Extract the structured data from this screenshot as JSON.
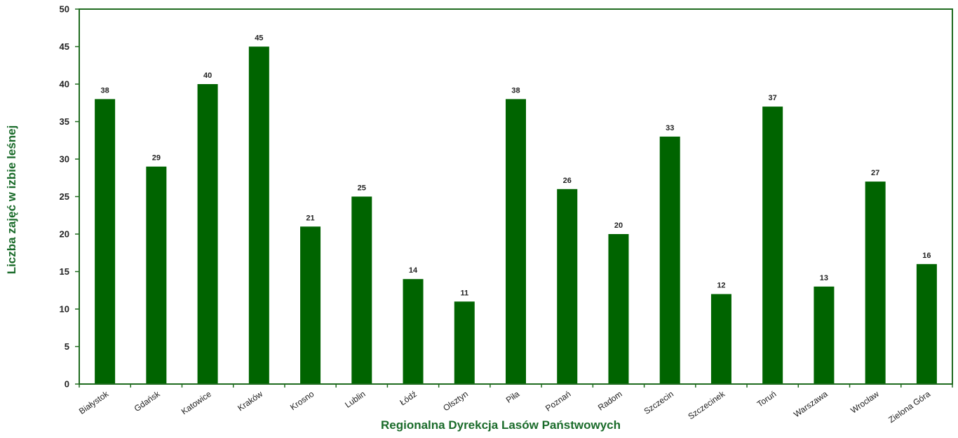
{
  "chart_data": {
    "type": "bar",
    "title": "",
    "xlabel": "Regionalna Dyrekcja Lasów Państwowych",
    "ylabel": "Liczba zajęć w izbie leśnej",
    "ylim": [
      0,
      50
    ],
    "yticks": [
      0,
      5,
      10,
      15,
      20,
      25,
      30,
      35,
      40,
      45,
      50
    ],
    "grid": false,
    "legend": "none",
    "colors": {
      "bar": "#006400",
      "axis": "#1f6b1f",
      "title": "#1a6b2a"
    },
    "categories": [
      "Białystok",
      "Gdańsk",
      "Katowice",
      "Kraków",
      "Krosno",
      "Lublin",
      "Łódź",
      "Olsztyn",
      "Piła",
      "Poznań",
      "Radom",
      "Szczecin",
      "Szczecinek",
      "Toruń",
      "Warszawa",
      "Wrocław",
      "Zielona Góra"
    ],
    "values": [
      38,
      29,
      40,
      45,
      21,
      25,
      14,
      11,
      38,
      26,
      20,
      33,
      12,
      37,
      13,
      27,
      16
    ]
  }
}
